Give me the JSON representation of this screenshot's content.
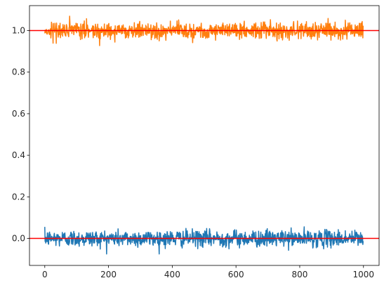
{
  "chart_data": {
    "type": "line",
    "title": "",
    "xlabel": "",
    "ylabel": "",
    "xlim": [
      -48,
      1049
    ],
    "ylim": [
      -0.13,
      1.12
    ],
    "x_ticks": [
      0,
      200,
      400,
      600,
      800,
      1000
    ],
    "x_tick_labels": [
      "0",
      "200",
      "400",
      "600",
      "800",
      "1000"
    ],
    "y_ticks": [
      0.0,
      0.2,
      0.4,
      0.6,
      0.8,
      1.0
    ],
    "y_tick_labels": [
      "0.0",
      "0.2",
      "0.4",
      "0.6",
      "0.8",
      "1.0"
    ],
    "grid": false,
    "legend": "none",
    "series": [
      {
        "color": "#1f77b4",
        "x_start": 0,
        "x_end": 999,
        "center": 0.0,
        "noise_std": 0.02,
        "min": -0.075,
        "max": 0.07,
        "num_points": 1000
      },
      {
        "color": "#ff7f0e",
        "x_start": 0,
        "x_end": 999,
        "center": 1.0,
        "noise_std": 0.02,
        "min": 0.925,
        "max": 1.07,
        "num_points": 1000
      }
    ],
    "reference_lines": [
      {
        "y": 0.0,
        "color": "#ff0000"
      },
      {
        "y": 1.0,
        "color": "#ff0000"
      }
    ]
  }
}
